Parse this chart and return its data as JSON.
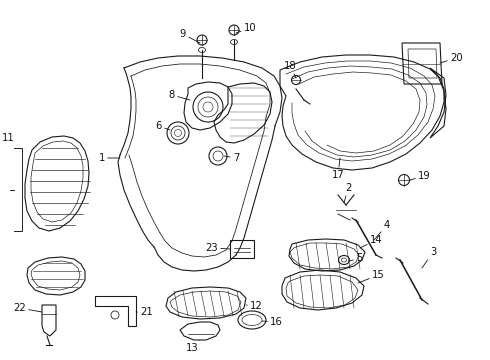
{
  "bg_color": "#ffffff",
  "line_color": "#1a1a1a",
  "label_color": "#111111",
  "figsize": [
    4.9,
    3.6
  ],
  "dpi": 100,
  "lw": 0.8
}
